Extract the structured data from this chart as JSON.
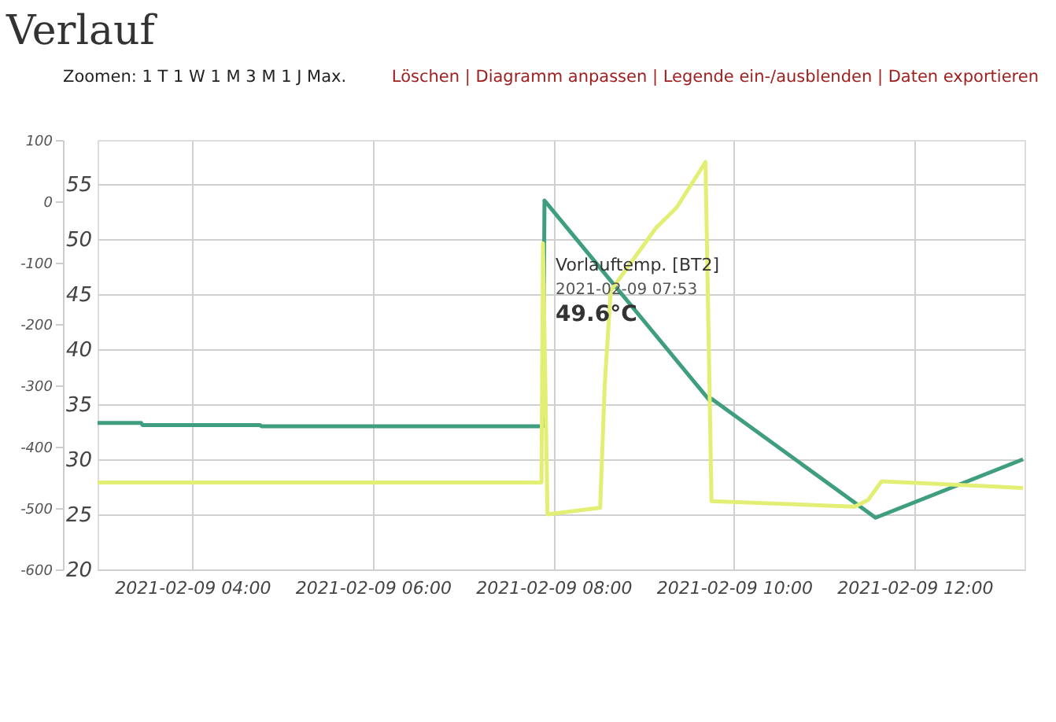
{
  "chart_data": {
    "type": "line",
    "title": "Verlauf",
    "xlim": [
      "2021-02-09T02:57",
      "2021-02-09T13:13"
    ],
    "xticks": [
      {
        "value": "2021-02-09T04:00",
        "label": "2021-02-09 04:00"
      },
      {
        "value": "2021-02-09T06:00",
        "label": "2021-02-09 06:00"
      },
      {
        "value": "2021-02-09T08:00",
        "label": "2021-02-09 08:00"
      },
      {
        "value": "2021-02-09T10:00",
        "label": "2021-02-09 10:00"
      },
      {
        "value": "2021-02-09T12:00",
        "label": "2021-02-09 12:00"
      }
    ],
    "ylim": [
      20,
      59
    ],
    "yticks": [
      20,
      25,
      30,
      35,
      40,
      45,
      50,
      55
    ],
    "y2lim": [
      -600,
      100
    ],
    "y2ticks": [
      -600,
      -500,
      -400,
      -300,
      -200,
      -100,
      0,
      100
    ],
    "grid": true,
    "legend": false,
    "marker": "none",
    "line_style": "solid",
    "series": [
      {
        "color": "#3f9e7f",
        "x": [
          "2021-02-09T02:57",
          "2021-02-09T03:26",
          "2021-02-09T03:27",
          "2021-02-09T04:45",
          "2021-02-09T04:46",
          "2021-02-09T07:53",
          "2021-02-09T07:54",
          "2021-02-09T09:44",
          "2021-02-09T09:45",
          "2021-02-09T11:34",
          "2021-02-09T13:12"
        ],
        "values": [
          33.3,
          33.3,
          33.1,
          33.1,
          33.0,
          33.0,
          53.5,
          35.3,
          35.5,
          24.7,
          30.0
        ]
      },
      {
        "color": "#e3ef74",
        "x": [
          "2021-02-09T02:57",
          "2021-02-09T07:52",
          "2021-02-09T07:53",
          "2021-02-09T07:56",
          "2021-02-09T08:31",
          "2021-02-09T08:34",
          "2021-02-09T08:38",
          "2021-02-09T09:08",
          "2021-02-09T09:22",
          "2021-02-09T09:41",
          "2021-02-09T09:45",
          "2021-02-09T11:20",
          "2021-02-09T11:29",
          "2021-02-09T11:38",
          "2021-02-09T13:12"
        ],
        "values": [
          27.9,
          27.9,
          49.6,
          25.0,
          25.6,
          36.7,
          45.3,
          51.0,
          52.9,
          57.0,
          26.2,
          25.7,
          26.3,
          28.0,
          27.4
        ]
      }
    ],
    "annotations": [
      "Zoomen: 1 T 1 W 1 M 3 M 1 J Max.",
      "Löschen |  Diagramm anpassen |  Legende ein-/ausblenden |  Daten exportieren",
      {
        "text": "Vorlauftemp. [BT2]",
        "x": "2021-02-09T07:53",
        "y": 49.6
      },
      {
        "text": "2021-02-09 07:53",
        "x": "2021-02-09T07:53",
        "y": 49.6
      },
      {
        "text": "49.6°C",
        "x": "2021-02-09T07:53",
        "y": 49.6
      }
    ]
  }
}
